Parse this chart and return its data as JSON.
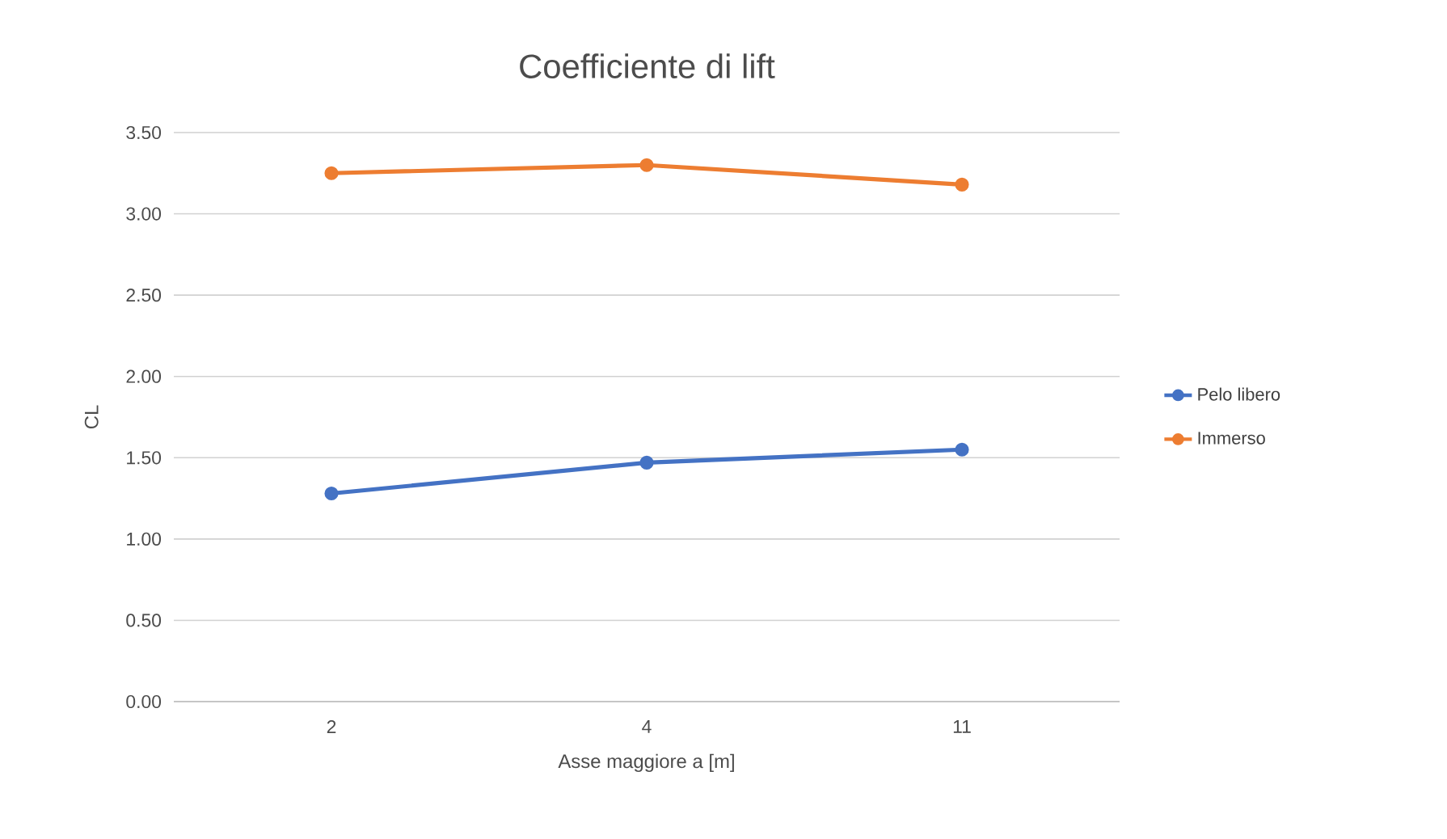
{
  "chart_data": {
    "type": "line",
    "title": "Coefficiente di lift",
    "xlabel": "Asse maggiore a [m]",
    "ylabel": "CL",
    "categories": [
      "2",
      "4",
      "11"
    ],
    "series": [
      {
        "name": "Pelo libero",
        "color": "#4472c4",
        "values": [
          1.28,
          1.47,
          1.55
        ]
      },
      {
        "name": "Immerso",
        "color": "#ed7d31",
        "values": [
          3.25,
          3.3,
          3.18
        ]
      }
    ],
    "ylim": [
      0,
      3.5
    ],
    "yticks": [
      {
        "value": 0,
        "label": "0.00"
      },
      {
        "value": 0.5,
        "label": "0.50"
      },
      {
        "value": 1,
        "label": "1.00"
      },
      {
        "value": 1.5,
        "label": "1.50"
      },
      {
        "value": 2,
        "label": "2.00"
      },
      {
        "value": 2.5,
        "label": "2.50"
      },
      {
        "value": 3,
        "label": "3.00"
      },
      {
        "value": 3.5,
        "label": "3.50"
      }
    ],
    "grid": "y",
    "legend": "right",
    "marker": "circle"
  }
}
